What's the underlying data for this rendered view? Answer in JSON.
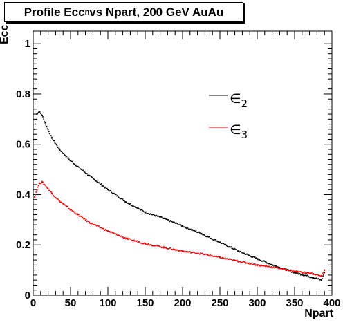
{
  "chart_data": {
    "type": "scatter",
    "title_main": "Profile Ecc",
    "title_sub": "n",
    "title_rest": " vs Npart, 200 GeV AuAu",
    "xlabel": "Npart",
    "ylabel_main": "Ecc",
    "ylabel_sub": "n",
    "xlim": [
      0,
      400
    ],
    "ylim": [
      0,
      1.05
    ],
    "x_ticks": [
      0,
      50,
      100,
      150,
      200,
      250,
      300,
      350,
      400
    ],
    "x_tick_labels": [
      "0",
      "50",
      "100",
      "150",
      "200",
      "250",
      "300",
      "350",
      "400"
    ],
    "y_ticks": [
      0,
      0.2,
      0.4,
      0.6,
      0.8,
      1
    ],
    "y_tick_labels": [
      "0",
      "0.2",
      "0.4",
      "0.6",
      "0.8",
      "1"
    ],
    "legend_position": "upper-right",
    "series": [
      {
        "name_symbol": "∈",
        "name_sub": "2",
        "color": "#000000",
        "points": [
          [
            2,
            0.66
          ],
          [
            5,
            0.72
          ],
          [
            8,
            0.73
          ],
          [
            12,
            0.715
          ],
          [
            18,
            0.67
          ],
          [
            25,
            0.625
          ],
          [
            35,
            0.58
          ],
          [
            50,
            0.535
          ],
          [
            75,
            0.475
          ],
          [
            100,
            0.42
          ],
          [
            125,
            0.37
          ],
          [
            150,
            0.33
          ],
          [
            175,
            0.305
          ],
          [
            200,
            0.275
          ],
          [
            225,
            0.245
          ],
          [
            250,
            0.21
          ],
          [
            275,
            0.175
          ],
          [
            300,
            0.145
          ],
          [
            325,
            0.115
          ],
          [
            350,
            0.09
          ],
          [
            375,
            0.07
          ],
          [
            386,
            0.06
          ],
          [
            390,
            0.09
          ]
        ]
      },
      {
        "name_symbol": "∈",
        "name_sub": "3",
        "color": "#ee0000",
        "points": [
          [
            2,
            0.39
          ],
          [
            5,
            0.42
          ],
          [
            8,
            0.445
          ],
          [
            12,
            0.45
          ],
          [
            18,
            0.43
          ],
          [
            25,
            0.405
          ],
          [
            35,
            0.375
          ],
          [
            50,
            0.34
          ],
          [
            75,
            0.29
          ],
          [
            100,
            0.255
          ],
          [
            125,
            0.225
          ],
          [
            150,
            0.205
          ],
          [
            175,
            0.19
          ],
          [
            200,
            0.175
          ],
          [
            225,
            0.165
          ],
          [
            250,
            0.15
          ],
          [
            275,
            0.135
          ],
          [
            300,
            0.12
          ],
          [
            325,
            0.11
          ],
          [
            350,
            0.095
          ],
          [
            375,
            0.085
          ],
          [
            386,
            0.075
          ],
          [
            390,
            0.1
          ]
        ]
      }
    ]
  }
}
